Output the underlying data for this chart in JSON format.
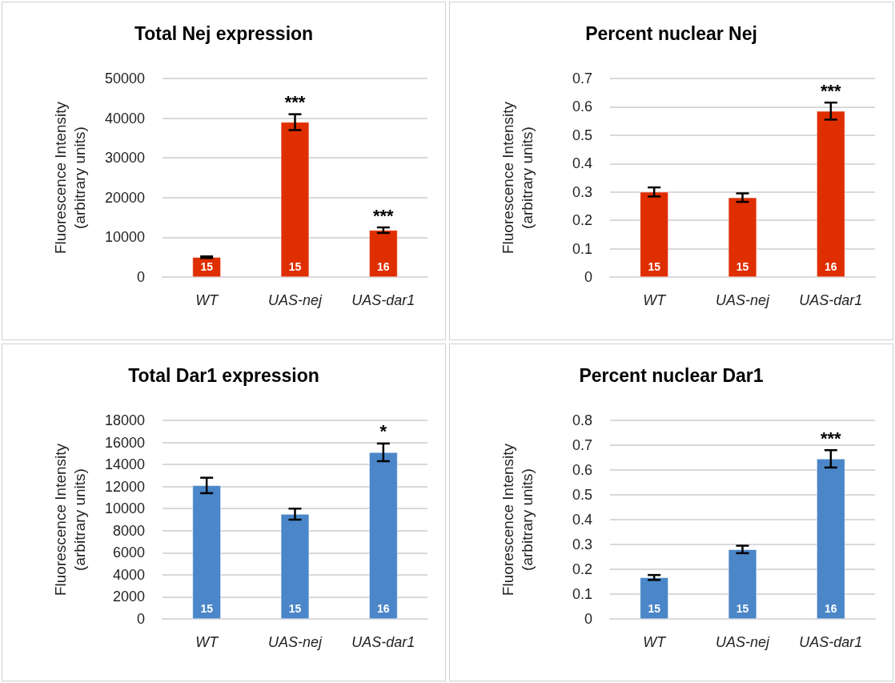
{
  "chart_data": [
    {
      "type": "bar",
      "title": "Total Nej expression",
      "ylabel": "Fluorescence Intensity\n(arbitrary units)",
      "categories": [
        "WT",
        "UAS-nej",
        "UAS-dar1"
      ],
      "values": [
        5000,
        39000,
        11800
      ],
      "errors": [
        200,
        2000,
        700
      ],
      "color": "#df2e00",
      "ylim": [
        0,
        50000
      ],
      "yticks": [
        0,
        10000,
        20000,
        30000,
        40000,
        50000
      ],
      "grid": "y",
      "annotations": [
        {
          "text": "***",
          "x": "UAS-nej",
          "y": 41000
        },
        {
          "text": "***",
          "x": "UAS-dar1",
          "y": 12500
        },
        {
          "text": "15",
          "x": "WT",
          "y": 0
        },
        {
          "text": "15",
          "x": "UAS-nej",
          "y": 0
        },
        {
          "text": "16",
          "x": "UAS-dar1",
          "y": 0
        }
      ]
    },
    {
      "type": "bar",
      "title": "Percent nuclear Nej",
      "ylabel": "Fluorescence Intensity\n(arbitrary units)",
      "categories": [
        "WT",
        "UAS-nej",
        "UAS-dar1"
      ],
      "values": [
        0.3,
        0.28,
        0.585
      ],
      "errors": [
        0.016,
        0.015,
        0.03
      ],
      "color": "#df2e00",
      "ylim": [
        0,
        0.7
      ],
      "yticks": [
        0,
        0.1,
        0.2,
        0.3,
        0.4,
        0.5,
        0.6,
        0.7
      ],
      "grid": "y",
      "annotations": [
        {
          "text": "***",
          "x": "UAS-dar1",
          "y": 0.615
        },
        {
          "text": "15",
          "x": "WT",
          "y": 0
        },
        {
          "text": "15",
          "x": "UAS-nej",
          "y": 0
        },
        {
          "text": "16",
          "x": "UAS-dar1",
          "y": 0
        }
      ]
    },
    {
      "type": "bar",
      "title": "Total Dar1 expression",
      "ylabel": "Fluorescence Intensity\n(arbitrary units)",
      "categories": [
        "WT",
        "UAS-nej",
        "UAS-dar1"
      ],
      "values": [
        12100,
        9500,
        15100
      ],
      "errors": [
        700,
        500,
        800
      ],
      "color": "#4a86c8",
      "ylim": [
        0,
        18000
      ],
      "yticks": [
        0,
        2000,
        4000,
        6000,
        8000,
        10000,
        12000,
        14000,
        16000,
        18000
      ],
      "grid": "y",
      "annotations": [
        {
          "text": "*",
          "x": "UAS-dar1",
          "y": 15900
        },
        {
          "text": "15",
          "x": "WT",
          "y": 0
        },
        {
          "text": "15",
          "x": "UAS-nej",
          "y": 0
        },
        {
          "text": "16",
          "x": "UAS-dar1",
          "y": 0
        }
      ]
    },
    {
      "type": "bar",
      "title": "Percent nuclear Dar1",
      "ylabel": "Fluorescence Intensity\n(arbitrary units)",
      "categories": [
        "WT",
        "UAS-nej",
        "UAS-dar1"
      ],
      "values": [
        0.167,
        0.28,
        0.645
      ],
      "errors": [
        0.01,
        0.015,
        0.035
      ],
      "color": "#4a86c8",
      "ylim": [
        0,
        0.8
      ],
      "yticks": [
        0,
        0.1,
        0.2,
        0.3,
        0.4,
        0.5,
        0.6,
        0.7,
        0.8
      ],
      "grid": "y",
      "annotations": [
        {
          "text": "***",
          "x": "UAS-dar1",
          "y": 0.68
        },
        {
          "text": "15",
          "x": "WT",
          "y": 0
        },
        {
          "text": "15",
          "x": "UAS-nej",
          "y": 0
        },
        {
          "text": "16",
          "x": "UAS-dar1",
          "y": 0
        }
      ]
    }
  ]
}
